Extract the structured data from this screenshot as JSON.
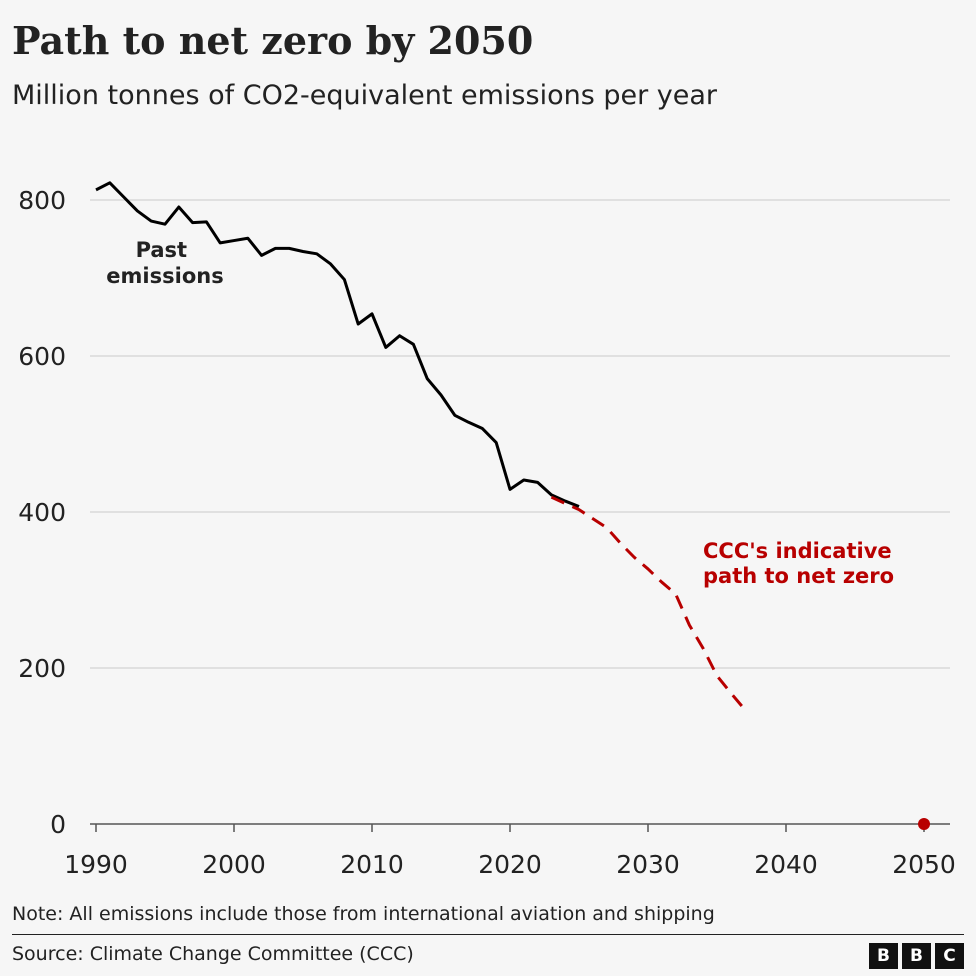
{
  "chart_data": {
    "type": "line",
    "title": "Path to net zero by 2050",
    "subtitle": "Million tonnes of CO2-equivalent emissions per year",
    "xlim": [
      1990,
      2050
    ],
    "ylim": [
      0,
      800
    ],
    "x_ticks": [
      1990,
      2000,
      2010,
      2020,
      2030,
      2040,
      2050
    ],
    "y_ticks": [
      0,
      200,
      400,
      600,
      800
    ],
    "grid": "horizontal",
    "colors": {
      "past": "#000000",
      "path": "#b80000",
      "target": "#b80000"
    },
    "series": [
      {
        "name": "Past emissions",
        "style": "solid",
        "x": [
          1990,
          1991,
          1992,
          1993,
          1994,
          1995,
          1996,
          1997,
          1998,
          1999,
          2000,
          2001,
          2002,
          2003,
          2004,
          2005,
          2006,
          2007,
          2008,
          2009,
          2010,
          2011,
          2012,
          2013,
          2014,
          2015,
          2016,
          2017,
          2018,
          2019,
          2020,
          2021,
          2022,
          2023,
          2024,
          2025
        ],
        "y": [
          813,
          822,
          804,
          786,
          773,
          769,
          791,
          771,
          772,
          745,
          748,
          751,
          729,
          738,
          738,
          734,
          731,
          718,
          698,
          641,
          654,
          611,
          626,
          615,
          571,
          550,
          524,
          515,
          507,
          489,
          429,
          441,
          438,
          422,
          414,
          407
        ]
      },
      {
        "name": "CCC's indicative path to net zero",
        "style": "dashed",
        "x": [
          2023,
          2025,
          2027,
          2028,
          2029,
          2030,
          2031,
          2032,
          2033,
          2034,
          2035,
          2036,
          2037
        ],
        "y": [
          419,
          403,
          380,
          360,
          342,
          327,
          310,
          295,
          255,
          225,
          190,
          168,
          147
        ]
      }
    ],
    "points": [
      {
        "x": 2050,
        "y": 0
      }
    ],
    "annotations": {
      "past": [
        "Past",
        "emissions"
      ],
      "path": [
        "CCC's indicative",
        "path to net zero"
      ]
    }
  },
  "footer": {
    "note": "Note: All emissions include those from international aviation and shipping",
    "source": "Source: Climate Change Committee (CCC)",
    "logo": [
      "B",
      "B",
      "C"
    ]
  }
}
